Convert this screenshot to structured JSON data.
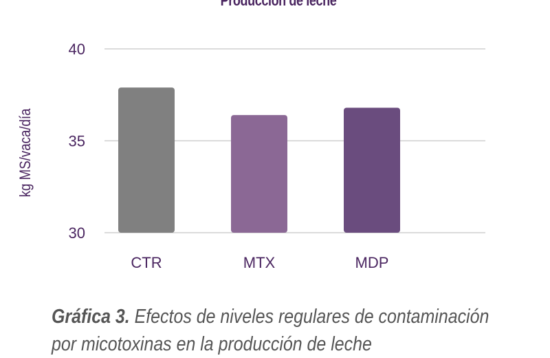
{
  "chart_data": {
    "type": "bar",
    "title": "Producción de leche",
    "xlabel": "",
    "ylabel": "kg MS/vaca/día",
    "categories": [
      "CTR",
      "MTX",
      "MDP"
    ],
    "values": [
      37.9,
      36.4,
      36.8
    ],
    "ylim": [
      30,
      40
    ],
    "yticks": [
      30,
      35,
      40
    ],
    "grid": true,
    "colors": [
      "#808080",
      "#8b6895",
      "#6a4c7e"
    ],
    "axis_color": "#4a2560"
  },
  "caption": {
    "label": "Gráfica 3.",
    "line1": "Efectos de niveles regulares de contaminación",
    "line2": "por micotoxinas en la producción de leche"
  }
}
